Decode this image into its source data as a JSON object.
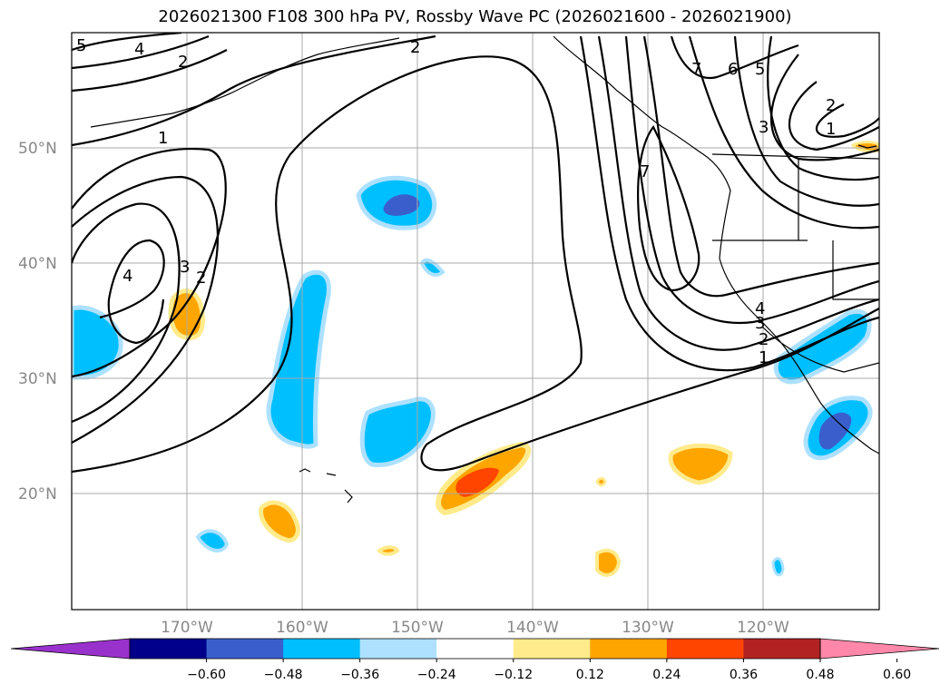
{
  "title": "2026021300 F108 300 hPa PV, Rossby Wave PC (2026021600 - 2026021900)",
  "lat_labels": [
    "50°N",
    "40°N",
    "30°N",
    "20°N"
  ],
  "lon_labels": [
    "170°W",
    "160°W",
    "150°W",
    "140°W",
    "130°W",
    "120°W"
  ],
  "colorbar": {
    "ticks": [
      "−0.60",
      "−0.48",
      "−0.36",
      "−0.24",
      "−0.12",
      "0.12",
      "0.24",
      "0.36",
      "0.48",
      "0.60"
    ],
    "colors": [
      "#9932CC",
      "#00008B",
      "#3A5FCD",
      "#00BFFF",
      "#ADE1FF",
      "#FFFFFF",
      "#FFEB8C",
      "#FFA500",
      "#FF4500",
      "#B22222",
      "#FF88AA"
    ]
  },
  "contour_labels": [
    "5",
    "4",
    "2",
    "2",
    "1",
    "4",
    "3",
    "2",
    "7",
    "6",
    "5",
    "2",
    "1",
    "3",
    "7",
    "4",
    "3",
    "2",
    "1"
  ],
  "colors": {
    "grid": "#aaaaaa",
    "contour": "#000000"
  }
}
